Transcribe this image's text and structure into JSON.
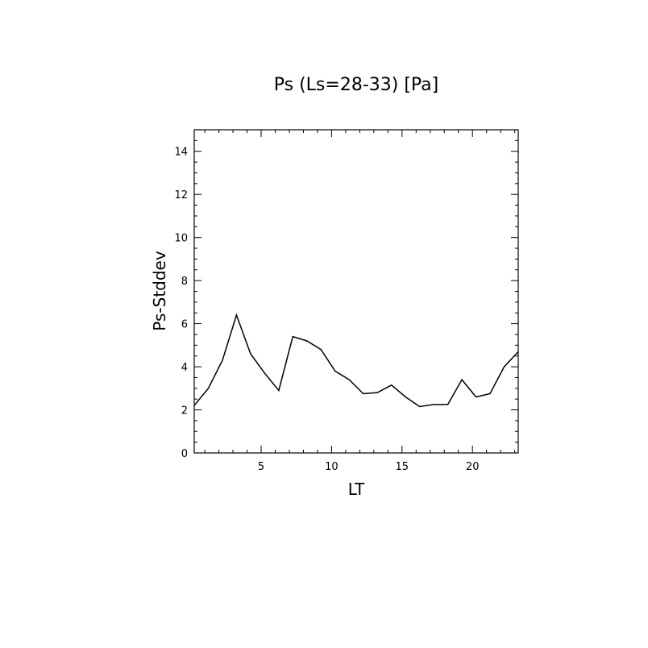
{
  "chart_data": {
    "type": "line",
    "title": "Ps (Ls=28-33) [Pa]",
    "xlabel": "LT",
    "ylabel": "Ps-Stddev",
    "xlim": [
      0.25,
      23.25
    ],
    "ylim": [
      0,
      15
    ],
    "xticks": [
      5,
      10,
      15,
      20
    ],
    "yticks": [
      0,
      2,
      4,
      6,
      8,
      10,
      12,
      14
    ],
    "grid": false,
    "series": [
      {
        "x": [
          0.25,
          1.25,
          2.25,
          3.25,
          4.25,
          5.25,
          6.25,
          7.25,
          8.25,
          9.25,
          10.25,
          11.25,
          12.25,
          13.25,
          14.25,
          15.25,
          16.25,
          17.25,
          18.25,
          19.25,
          20.25,
          21.25,
          22.25,
          23.25
        ],
        "values": [
          2.2,
          3.0,
          4.3,
          6.4,
          4.6,
          3.7,
          2.9,
          5.4,
          5.2,
          4.8,
          3.8,
          3.4,
          2.75,
          2.8,
          3.15,
          2.6,
          2.15,
          2.25,
          2.25,
          3.4,
          2.6,
          2.75,
          4.0,
          4.7
        ]
      }
    ]
  }
}
